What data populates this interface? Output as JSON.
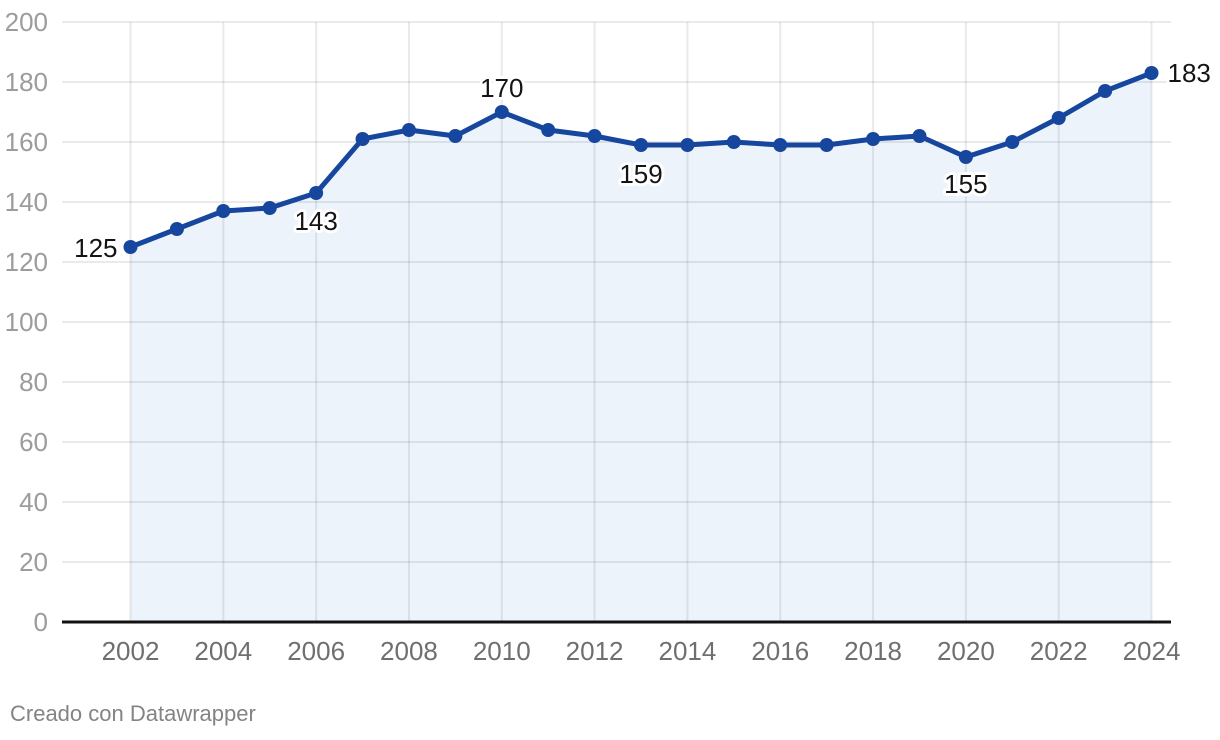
{
  "footer": {
    "attribution": "Creado con Datawrapper"
  },
  "chart_data": {
    "type": "area",
    "title": "",
    "xlabel": "",
    "ylabel": "",
    "x": [
      2002,
      2003,
      2004,
      2005,
      2006,
      2007,
      2008,
      2009,
      2010,
      2011,
      2012,
      2013,
      2014,
      2015,
      2016,
      2017,
      2018,
      2019,
      2020,
      2021,
      2022,
      2023,
      2024
    ],
    "values": [
      125,
      131,
      137,
      138,
      143,
      161,
      164,
      162,
      170,
      164,
      162,
      159,
      159,
      160,
      159,
      159,
      161,
      162,
      155,
      160,
      168,
      177,
      183
    ],
    "xticks": [
      2002,
      2004,
      2006,
      2008,
      2010,
      2012,
      2014,
      2016,
      2018,
      2020,
      2022,
      2024
    ],
    "yticks": [
      0,
      20,
      40,
      60,
      80,
      100,
      120,
      140,
      160,
      180,
      200
    ],
    "ylim": [
      0,
      200
    ],
    "xlim": [
      2002,
      2024
    ],
    "grid": "on",
    "legend": "none",
    "labeled_points": [
      {
        "year": 2002,
        "label": "125"
      },
      {
        "year": 2006,
        "label": "143"
      },
      {
        "year": 2010,
        "label": "170"
      },
      {
        "year": 2013,
        "label": "159"
      },
      {
        "year": 2020,
        "label": "155"
      },
      {
        "year": 2024,
        "label": "183"
      }
    ],
    "colors": {
      "line": "#16469d",
      "point": "#16469d",
      "area_fill": "#edf3fb",
      "grid": "rgba(17,17,17,0.09)",
      "axis_line": "#111111",
      "ytick_text": "#9c9c9c",
      "xtick_text": "#6f6f6f",
      "data_label_text": "#141414",
      "footer_text": "#848484"
    }
  }
}
